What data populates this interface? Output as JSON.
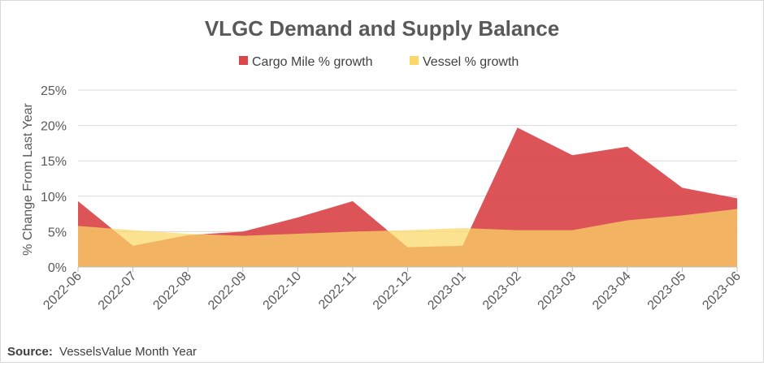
{
  "chart_data": {
    "type": "area",
    "title": "VLGC Demand and Supply Balance",
    "ylabel": "% Change From Last Year",
    "xlabel": "",
    "ylim": [
      0,
      25
    ],
    "yticks": [
      0,
      5,
      10,
      15,
      20,
      25
    ],
    "ytick_labels": [
      "0%",
      "5%",
      "10%",
      "15%",
      "20%",
      "25%"
    ],
    "categories": [
      "2022-06",
      "2022-07",
      "2022-08",
      "2022-09",
      "2022-10",
      "2022-11",
      "2022-12",
      "2023-01",
      "2023-02",
      "2023-03",
      "2023-04",
      "2023-05",
      "2023-06"
    ],
    "series": [
      {
        "name": "Cargo Mile % growth",
        "color": "#d9474a",
        "values": [
          9.3,
          3.0,
          4.5,
          5.0,
          7.0,
          9.3,
          2.8,
          3.0,
          19.7,
          15.8,
          17.0,
          11.2,
          9.7
        ]
      },
      {
        "name": "Vessel % growth",
        "color": "#fbd867",
        "values": [
          5.8,
          5.2,
          4.7,
          4.4,
          4.7,
          5.0,
          5.2,
          5.5,
          5.2,
          5.2,
          6.6,
          7.3,
          8.2
        ]
      }
    ],
    "legend_position": "top-center",
    "grid": true
  },
  "source": {
    "label": "Source:",
    "text": "VesselsValue Month Year"
  }
}
